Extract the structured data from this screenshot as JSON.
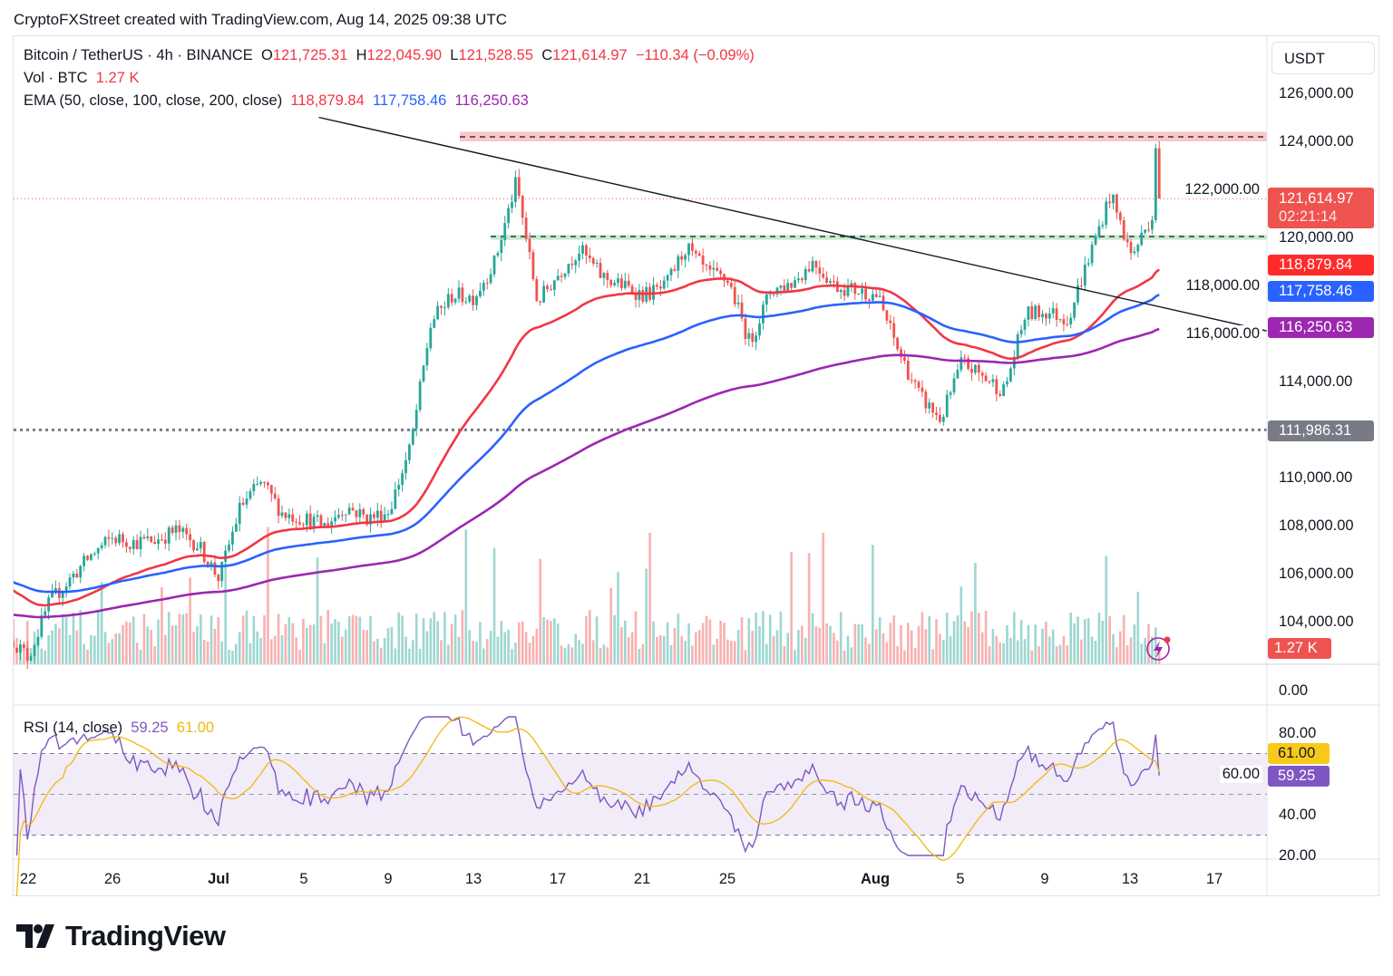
{
  "header": "CryptoFXStreet created with TradingView.com, Aug 14, 2025 09:38 UTC",
  "legend": {
    "symbol": "Bitcoin / TetherUS · 4h · BINANCE",
    "o_label": "O",
    "o": "121,725.31",
    "h_label": "H",
    "h": "122,045.90",
    "l_label": "L",
    "l": "121,528.55",
    "c_label": "C",
    "c": "121,614.97",
    "change": "−110.34 (−0.09%)",
    "vol_label": "Vol · BTC",
    "vol": "1.27 K",
    "ema_label": "EMA (50, close, 100, close, 200, close)",
    "ema50": "118,879.84",
    "ema100": "117,758.46",
    "ema200": "116,250.63",
    "rsi_label": "RSI (14, close)",
    "rsi": "59.25",
    "rsi_ma": "61.00"
  },
  "currency_button": "USDT",
  "price_axis": [
    "126,000.00",
    "124,000.00",
    "122,000.00",
    "120,000.00",
    "118,000.00",
    "116,000.00",
    "114,000.00",
    "110,000.00",
    "108,000.00",
    "106,000.00",
    "104,000.00",
    "0.00"
  ],
  "price_tags": {
    "last": "121,614.97",
    "countdown": "02:21:14",
    "ema50": "118,879.84",
    "ema100": "117,758.46",
    "ema200": "116,250.63",
    "support": "111,986.31",
    "volume": "1.27 K",
    "rsi_ma": "61.00",
    "rsi": "59.25"
  },
  "rsi_axis": [
    "80.00",
    "60.00",
    "40.00",
    "20.00"
  ],
  "time_axis": [
    "22",
    "26",
    "Jul",
    "5",
    "9",
    "13",
    "17",
    "21",
    "25",
    "Aug",
    "5",
    "9",
    "13",
    "17"
  ],
  "logo": "TradingView",
  "colors": {
    "up": "#26a69a",
    "down": "#ef5350",
    "ema50": "#f23645",
    "ema100": "#2962ff",
    "ema200": "#9c27b0",
    "rsi": "#7e57c2",
    "rsi_ma": "#f0b90b"
  },
  "chart_data": {
    "type": "candlestick",
    "title": "Bitcoin / TetherUS · 4h · BINANCE",
    "x_unit": "days since Jun 22, 2025",
    "daily_closes": [
      [
        -0.7,
        103200
      ],
      [
        0,
        102500
      ],
      [
        1,
        104800
      ],
      [
        2,
        105800
      ],
      [
        3,
        106800
      ],
      [
        4,
        107500
      ],
      [
        5,
        107300
      ],
      [
        6,
        107400
      ],
      [
        7,
        107800
      ],
      [
        8,
        107200
      ],
      [
        9,
        105800
      ],
      [
        10,
        108800
      ],
      [
        11,
        109800
      ],
      [
        12,
        108500
      ],
      [
        13,
        108300
      ],
      [
        14,
        108000
      ],
      [
        15,
        108800
      ],
      [
        16,
        108300
      ],
      [
        17,
        108600
      ],
      [
        18,
        111200
      ],
      [
        19,
        116500
      ],
      [
        20,
        117600
      ],
      [
        21,
        117500
      ],
      [
        22,
        119000
      ],
      [
        23,
        122300
      ],
      [
        24,
        117300
      ],
      [
        25,
        118500
      ],
      [
        26,
        119500
      ],
      [
        27,
        118400
      ],
      [
        28,
        118000
      ],
      [
        29,
        117600
      ],
      [
        30,
        117900
      ],
      [
        31,
        119600
      ],
      [
        32,
        118500
      ],
      [
        33,
        118200
      ],
      [
        34,
        115600
      ],
      [
        35,
        117800
      ],
      [
        36,
        118100
      ],
      [
        37,
        119000
      ],
      [
        38,
        118000
      ],
      [
        39,
        117800
      ],
      [
        40,
        117600
      ],
      [
        41,
        115300
      ],
      [
        42,
        113400
      ],
      [
        43,
        112400
      ],
      [
        44,
        114800
      ],
      [
        45,
        114200
      ],
      [
        46,
        113600
      ],
      [
        47,
        116800
      ],
      [
        48,
        116900
      ],
      [
        49,
        116600
      ],
      [
        50,
        119200
      ],
      [
        51,
        121800
      ],
      [
        52,
        119200
      ],
      [
        53,
        121000
      ],
      [
        53.15,
        124200
      ],
      [
        53.33,
        121615
      ]
    ],
    "levels": {
      "resistance_zone": [
        124000,
        124400
      ],
      "support_zone": [
        119900,
        120100
      ],
      "horizontal_support": 111986.31,
      "last_price": 121614.97
    },
    "trendline": {
      "from": [
        13.7,
        125000
      ],
      "to": [
        58.4,
        116100
      ]
    },
    "ema_periods": [
      50,
      100,
      200
    ],
    "ema_last": [
      118879.84,
      117758.46,
      116250.63
    ],
    "rsi_period": 14,
    "rsi_last": 59.25,
    "rsi_ma_last": 61.0,
    "ylim": [
      102500,
      127000
    ],
    "rsi_lim": [
      20,
      85
    ],
    "rsi_bands": [
      70,
      50,
      30
    ]
  }
}
